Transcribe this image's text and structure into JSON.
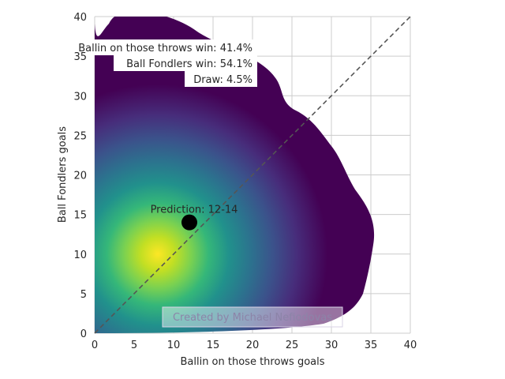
{
  "chart_data": {
    "type": "heatmap",
    "title": "",
    "xlabel": "Ballin on those throws goals",
    "ylabel": "Ball Fondlers goals",
    "xlim": [
      0,
      40
    ],
    "ylim": [
      0,
      40
    ],
    "xticks": [
      0,
      5,
      10,
      15,
      20,
      25,
      30,
      35,
      40
    ],
    "yticks": [
      0,
      5,
      10,
      15,
      20,
      25,
      30,
      35,
      40
    ],
    "grid": true,
    "colormap": "viridis",
    "density_peak": {
      "x": 8,
      "y": 10
    },
    "diagonal": {
      "from": [
        0,
        0
      ],
      "to": [
        40,
        40
      ],
      "style": "dashed"
    },
    "prediction": {
      "x": 12,
      "y": 14,
      "label": "Prediction: 12-14"
    },
    "annotations": [
      "Ballin on those throws win: 41.4%",
      "Ball Fondlers win: 54.1%",
      "Draw: 4.5%"
    ],
    "credit": "Created by Michael Nefiodovas"
  }
}
